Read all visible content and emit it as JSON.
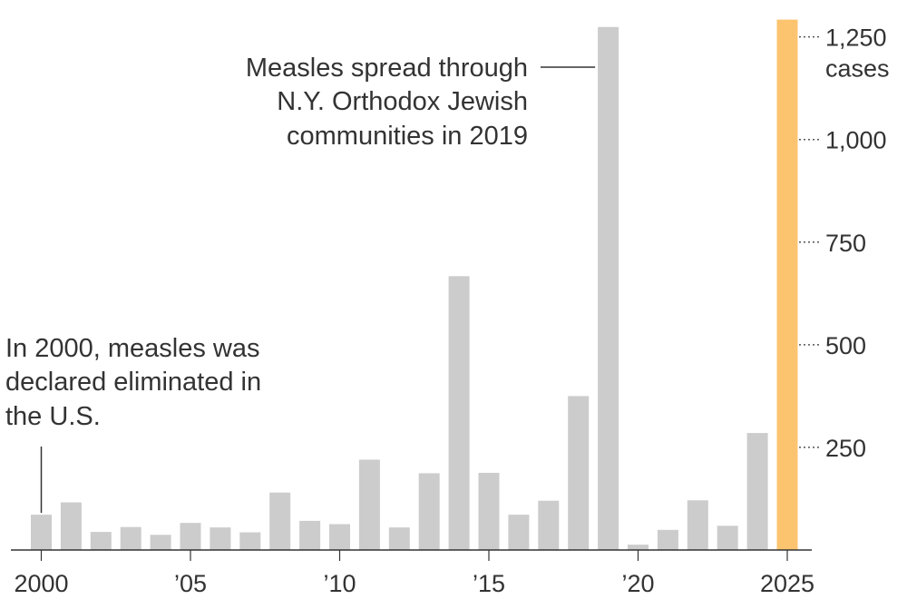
{
  "chart_data": {
    "type": "bar",
    "categories": [
      "2000",
      "2001",
      "2002",
      "2003",
      "2004",
      "2005",
      "2006",
      "2007",
      "2008",
      "2009",
      "2010",
      "2011",
      "2012",
      "2013",
      "2014",
      "2015",
      "2016",
      "2017",
      "2018",
      "2019",
      "2020",
      "2021",
      "2022",
      "2023",
      "2024",
      "2025"
    ],
    "values": [
      86,
      116,
      44,
      56,
      37,
      66,
      55,
      43,
      140,
      71,
      63,
      220,
      55,
      187,
      667,
      188,
      86,
      120,
      375,
      1274,
      13,
      49,
      121,
      59,
      285,
      1292
    ],
    "x_tick_labels": [
      {
        "category": "2000",
        "label": "2000"
      },
      {
        "category": "2005",
        "label": "’05"
      },
      {
        "category": "2010",
        "label": "’10"
      },
      {
        "category": "2015",
        "label": "’15"
      },
      {
        "category": "2020",
        "label": "’20"
      },
      {
        "category": "2025",
        "label": "2025"
      }
    ],
    "y_ticks": [
      {
        "value": 250,
        "label": "250"
      },
      {
        "value": 500,
        "label": "500"
      },
      {
        "value": 750,
        "label": "750"
      },
      {
        "value": 1000,
        "label": "1,000"
      },
      {
        "value": 1250,
        "label": "1,250"
      }
    ],
    "y_unit_label": "cases",
    "ylim": [
      0,
      1300
    ],
    "grid": false,
    "colors": {
      "bar": "#cccccc",
      "highlight_bar": "#fdc470",
      "text": "#333333",
      "axis": "#333333"
    },
    "highlight_category": "2025",
    "annotations": [
      {
        "category": "2019",
        "lines": [
          "Measles spread through",
          "N.Y. Orthodox Jewish",
          "communities in 2019"
        ]
      },
      {
        "category": "2000",
        "lines": [
          "In 2000, measles was",
          "declared eliminated in",
          "the U.S."
        ]
      }
    ]
  }
}
